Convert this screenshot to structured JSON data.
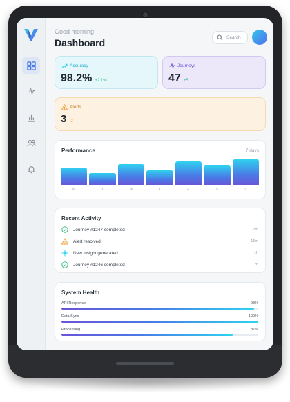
{
  "colors": {
    "accent_cyan": "#2fd2ef",
    "accent_purple": "#6a54d8",
    "success_green": "#3bbf8a",
    "warning_orange": "#f0a23a",
    "accuracy_card_bg": "#e6f7fb",
    "journeys_card_bg": "#ece8fa",
    "alerts_card_bg": "#fdf1e2"
  },
  "sidebar": {
    "logo_icon": "v-logo-icon",
    "items": [
      {
        "icon": "grid-icon",
        "active": true
      },
      {
        "icon": "pulse-icon",
        "active": false
      },
      {
        "icon": "bar-chart-icon",
        "active": false
      },
      {
        "icon": "users-icon",
        "active": false
      },
      {
        "icon": "bell-icon",
        "active": false
      }
    ]
  },
  "header": {
    "greeting": "Good morning",
    "title": "Dashboard",
    "search_placeholder": "Search"
  },
  "stats": {
    "accuracy": {
      "label": "Accuracy",
      "value": "98.2%",
      "delta": "+2.1%"
    },
    "journeys": {
      "label": "Journeys",
      "value": "47",
      "delta": "+5"
    },
    "alerts": {
      "label": "Alerts",
      "value": "3",
      "delta": "-2"
    }
  },
  "performance": {
    "title": "Performance",
    "period": "7 days"
  },
  "chart_data": {
    "type": "bar",
    "categories": [
      "M",
      "T",
      "W",
      "T",
      "F",
      "S",
      "S"
    ],
    "values": [
      68,
      48,
      82,
      57,
      93,
      77,
      100
    ],
    "ylim": [
      0,
      100
    ],
    "grid": false
  },
  "activity": {
    "title": "Recent Activity",
    "items": [
      {
        "icon": "check-circle-icon",
        "text": "Journey #1247 completed",
        "time": "2m"
      },
      {
        "icon": "warning-triangle-icon",
        "text": "Alert resolved",
        "time": "15m"
      },
      {
        "icon": "sparkle-icon",
        "text": "New insight generated",
        "time": "1h"
      },
      {
        "icon": "check-circle-icon",
        "text": "Journey #1246 completed",
        "time": "2h"
      }
    ]
  },
  "health": {
    "title": "System Health",
    "items": [
      {
        "label": "API Response",
        "value": "98%",
        "fraction": 0.98
      },
      {
        "label": "Data Sync",
        "value": "100%",
        "fraction": 1.0
      },
      {
        "label": "Processing",
        "value": "87%",
        "fraction": 0.87
      }
    ]
  }
}
